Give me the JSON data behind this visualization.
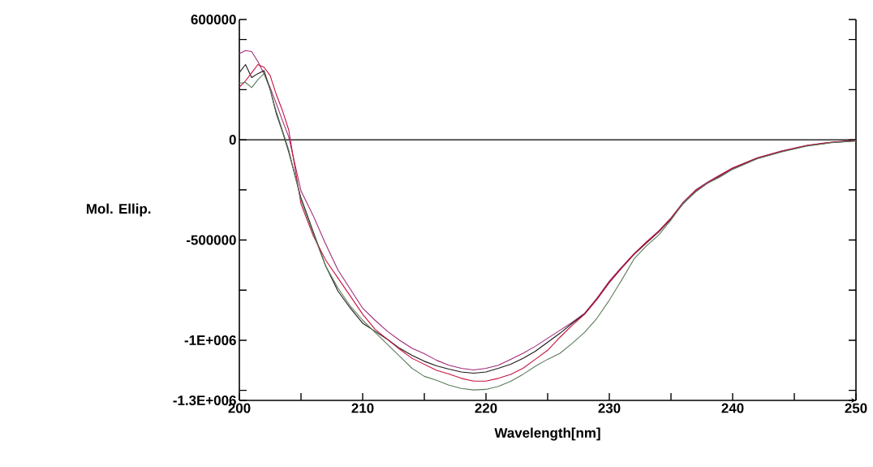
{
  "chart_data": {
    "type": "line",
    "xlabel": "Wavelength[nm]",
    "ylabel": "Mol. Ellip.",
    "x": [
      200,
      200.5,
      201,
      201.5,
      202,
      202.5,
      203,
      203.5,
      204,
      205,
      206,
      207,
      208,
      209,
      210,
      211,
      212,
      213,
      214,
      215,
      216,
      217,
      218,
      219,
      220,
      221,
      222,
      223,
      224,
      225,
      226,
      227,
      228,
      229,
      230,
      231,
      232,
      233,
      234,
      235,
      236,
      237,
      238,
      239,
      240,
      242,
      244,
      246,
      248,
      250
    ],
    "series": [
      {
        "color": "#a02a7a",
        "values": [
          430000,
          445000,
          440000,
          390000,
          330000,
          260000,
          180000,
          95000,
          15000,
          -255000,
          -380000,
          -520000,
          -650000,
          -745000,
          -840000,
          -900000,
          -955000,
          -1000000,
          -1040000,
          -1067000,
          -1100000,
          -1125000,
          -1140000,
          -1148000,
          -1140000,
          -1125000,
          -1095000,
          -1065000,
          -1030000,
          -990000,
          -950000,
          -910000,
          -865000,
          -790000,
          -705000,
          -635000,
          -568000,
          -510000,
          -455000,
          -390000,
          -310000,
          -250000,
          -210000,
          -175000,
          -140000,
          -90000,
          -55000,
          -28000,
          -12000,
          -3000
        ]
      },
      {
        "color": "#1a1a1a",
        "values": [
          335000,
          375000,
          310000,
          330000,
          345000,
          250000,
          130000,
          40000,
          -60000,
          -290000,
          -460000,
          -630000,
          -755000,
          -840000,
          -915000,
          -955000,
          -995000,
          -1040000,
          -1075000,
          -1105000,
          -1128000,
          -1144000,
          -1158000,
          -1164000,
          -1158000,
          -1140000,
          -1120000,
          -1090000,
          -1055000,
          -1010000,
          -965000,
          -915000,
          -868000,
          -795000,
          -712000,
          -640000,
          -572000,
          -515000,
          -460000,
          -395000,
          -318000,
          -258000,
          -215000,
          -180000,
          -143000,
          -93000,
          -58000,
          -30000,
          -14000,
          -5000
        ]
      },
      {
        "color": "#c8103c",
        "values": [
          262000,
          294000,
          334000,
          375000,
          362000,
          320000,
          225000,
          145000,
          50000,
          -320000,
          -480000,
          -600000,
          -690000,
          -780000,
          -870000,
          -945000,
          -995000,
          -1045000,
          -1090000,
          -1120000,
          -1150000,
          -1168000,
          -1190000,
          -1204000,
          -1204000,
          -1190000,
          -1170000,
          -1140000,
          -1095000,
          -1050000,
          -985000,
          -925000,
          -870000,
          -795000,
          -710000,
          -638000,
          -570000,
          -512000,
          -457000,
          -392000,
          -314000,
          -254000,
          -212000,
          -177000,
          -141000,
          -91000,
          -56000,
          -29000,
          -13000,
          -4000
        ]
      },
      {
        "color": "#5b7b5b",
        "values": [
          282000,
          286000,
          260000,
          300000,
          330000,
          250000,
          140000,
          45000,
          -50000,
          -300000,
          -470000,
          -630000,
          -740000,
          -830000,
          -900000,
          -960000,
          -1020000,
          -1080000,
          -1140000,
          -1180000,
          -1200000,
          -1224000,
          -1240000,
          -1248000,
          -1245000,
          -1230000,
          -1205000,
          -1170000,
          -1130000,
          -1095000,
          -1065000,
          -1015000,
          -960000,
          -890000,
          -800000,
          -700000,
          -595000,
          -530000,
          -475000,
          -400000,
          -315000,
          -260000,
          -215000,
          -185000,
          -148000,
          -95000,
          -60000,
          -32000,
          -15000,
          -6000
        ]
      }
    ],
    "xlim": [
      200,
      250
    ],
    "xticks": [
      200,
      {
        "value": 205,
        "label": null
      },
      210,
      {
        "value": 215,
        "label": null
      },
      220,
      {
        "value": 225,
        "label": null
      },
      230,
      {
        "value": 235,
        "label": null
      },
      240,
      {
        "value": 245,
        "label": null
      },
      250
    ],
    "ylim": [
      -1300000,
      600000
    ],
    "yticks": [
      600000,
      {
        "value": 500000,
        "label": null
      },
      {
        "value": 250000,
        "label": null
      },
      0,
      {
        "value": -250000,
        "label": null
      },
      -500000,
      {
        "value": -750000,
        "label": null
      },
      {
        "value": -1000000,
        "label": "-1E+006"
      },
      {
        "value": -1250000,
        "label": null
      },
      {
        "value": -1300000,
        "label": "-1.3E+006"
      }
    ],
    "ref_lines": [
      {
        "axis": "y",
        "value": 0,
        "color": "#000000"
      }
    ],
    "grid": false,
    "marker": "none",
    "line_style": "solid"
  }
}
